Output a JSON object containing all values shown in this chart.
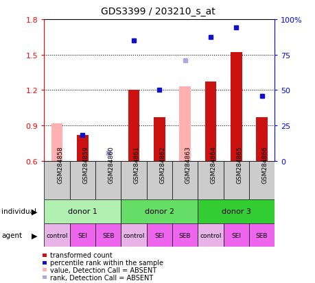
{
  "title": "GDS3399 / 203210_s_at",
  "samples": [
    "GSM284858",
    "GSM284859",
    "GSM284860",
    "GSM284861",
    "GSM284862",
    "GSM284863",
    "GSM284864",
    "GSM284865",
    "GSM284866"
  ],
  "red_bar_values": [
    null,
    0.82,
    null,
    1.2,
    0.97,
    null,
    1.27,
    1.52,
    0.97
  ],
  "pink_bar_values": [
    0.92,
    null,
    null,
    null,
    null,
    1.23,
    null,
    null,
    null
  ],
  "blue_sq_values": [
    null,
    0.82,
    null,
    1.62,
    1.2,
    null,
    1.65,
    1.73,
    1.15
  ],
  "light_blue_sq_values": [
    null,
    null,
    0.67,
    null,
    null,
    1.45,
    null,
    null,
    null
  ],
  "ylim": [
    0.6,
    1.8
  ],
  "y2lim": [
    0,
    100
  ],
  "yticks": [
    0.6,
    0.9,
    1.2,
    1.5,
    1.8
  ],
  "y2ticks": [
    0,
    25,
    50,
    75,
    100
  ],
  "donors": [
    {
      "label": "donor 1",
      "start": 0,
      "end": 3,
      "color": "#b2f0b2"
    },
    {
      "label": "donor 2",
      "start": 3,
      "end": 6,
      "color": "#66dd66"
    },
    {
      "label": "donor 3",
      "start": 6,
      "end": 9,
      "color": "#33cc33"
    }
  ],
  "agents": [
    "control",
    "SEI",
    "SEB",
    "control",
    "SEI",
    "SEB",
    "control",
    "SEI",
    "SEB"
  ],
  "agent_colors": [
    "#e8b4e8",
    "#ee66ee",
    "#ee66ee",
    "#e8b4e8",
    "#ee66ee",
    "#ee66ee",
    "#e8b4e8",
    "#ee66ee",
    "#ee66ee"
  ],
  "bar_bottom": 0.6,
  "red_bar_color": "#cc1111",
  "pink_bar_color": "#ffb0b0",
  "blue_sq_color": "#1111cc",
  "light_blue_sq_color": "#aaaadd",
  "sample_bg_color": "#cccccc",
  "legend_items": [
    {
      "label": "transformed count",
      "color": "#cc1111"
    },
    {
      "label": "percentile rank within the sample",
      "color": "#1111cc"
    },
    {
      "label": "value, Detection Call = ABSENT",
      "color": "#ffb0b0"
    },
    {
      "label": "rank, Detection Call = ABSENT",
      "color": "#aaaadd"
    }
  ]
}
